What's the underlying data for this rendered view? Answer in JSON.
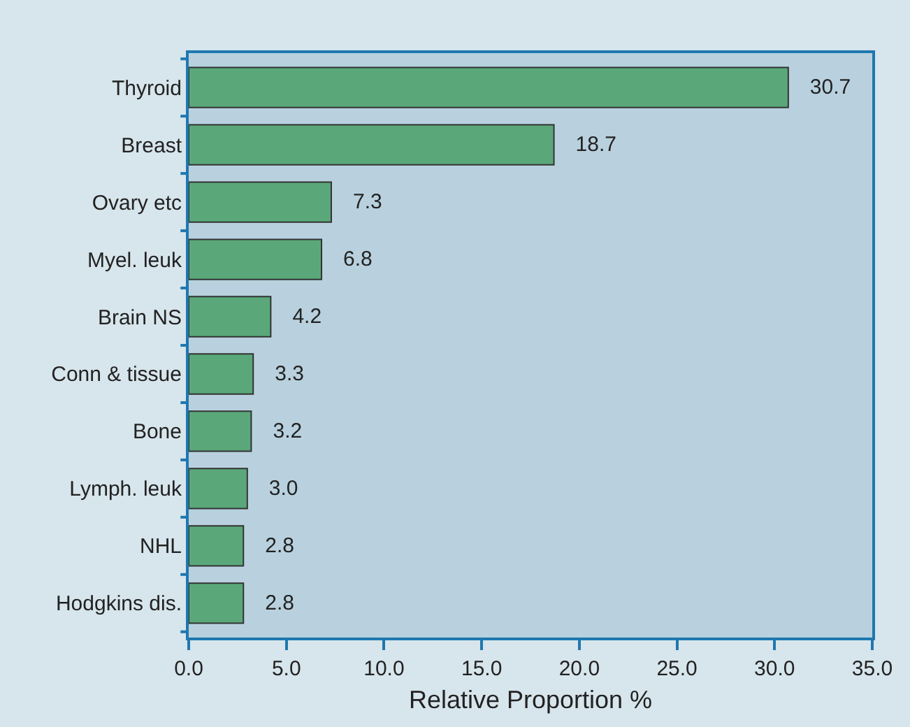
{
  "chart_data": {
    "type": "bar",
    "orientation": "horizontal",
    "xlabel": "Relative Proportion %",
    "categories": [
      "Thyroid",
      "Breast",
      "Ovary etc",
      "Myel. leuk",
      "Brain NS",
      "Conn & tissue",
      "Bone",
      "Lymph. leuk",
      "NHL",
      "Hodgkins dis."
    ],
    "values": [
      30.7,
      18.7,
      7.3,
      6.8,
      4.2,
      3.3,
      3.2,
      3.0,
      2.8,
      2.8
    ],
    "value_labels": [
      "30.7",
      "18.7",
      "7.3",
      "6.8",
      "4.2",
      "3.3",
      "3.2",
      "3.0",
      "2.8",
      "2.8"
    ],
    "color": "#5aa87a",
    "xlim": [
      0,
      35
    ],
    "xticks": [
      {
        "value": 0,
        "label": "0.0"
      },
      {
        "value": 5,
        "label": "5.0"
      },
      {
        "value": 10,
        "label": "10.0"
      },
      {
        "value": 15,
        "label": "15.0"
      },
      {
        "value": 20,
        "label": "20.0"
      },
      {
        "value": 25,
        "label": "25.0"
      },
      {
        "value": 30,
        "label": "30.0"
      },
      {
        "value": 35,
        "label": "35.0"
      }
    ],
    "grid": false,
    "legend": false
  }
}
